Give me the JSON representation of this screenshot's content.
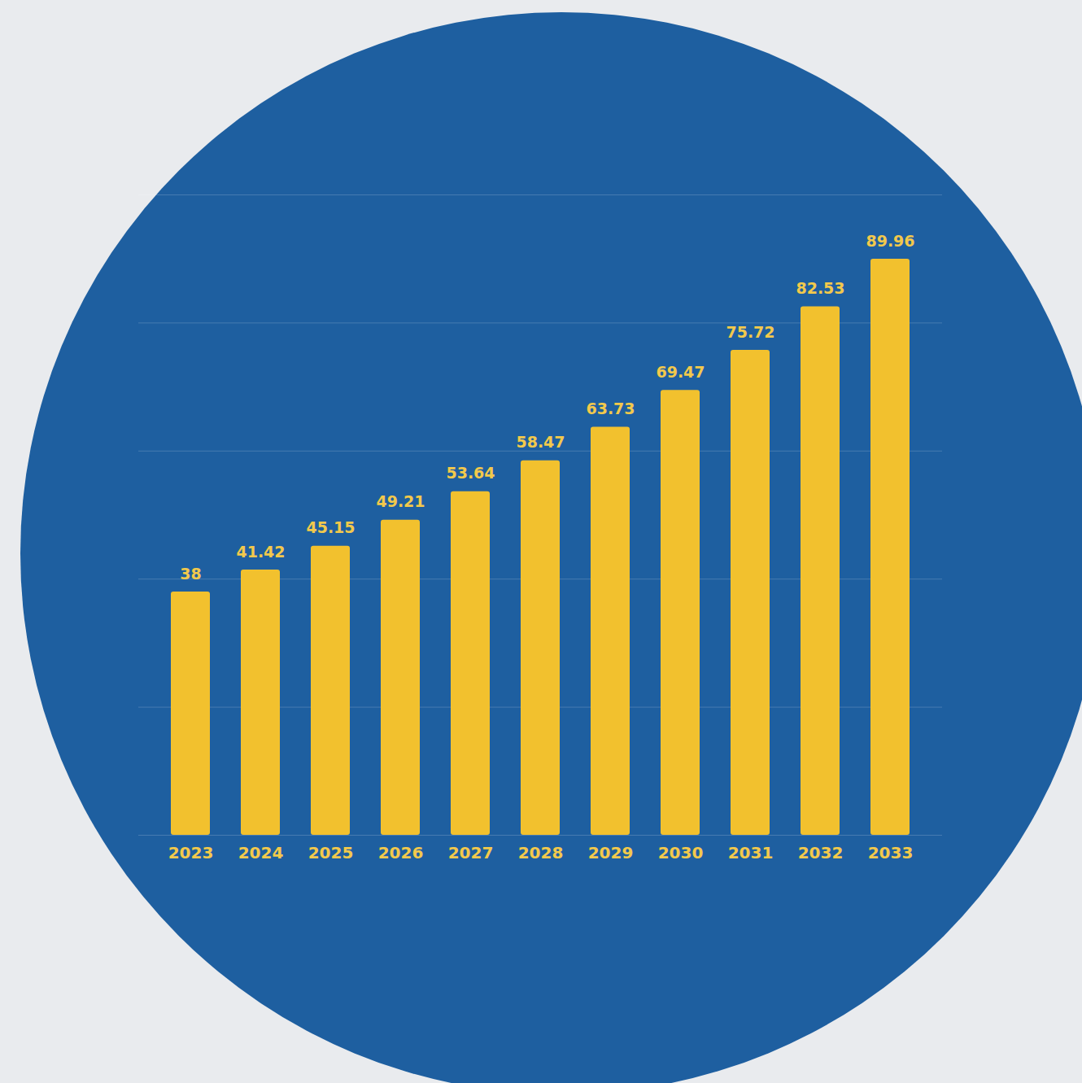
{
  "chart_data": {
    "type": "bar",
    "categories": [
      "2023",
      "2024",
      "2025",
      "2026",
      "2027",
      "2028",
      "2029",
      "2030",
      "2031",
      "2032",
      "2033"
    ],
    "values": [
      38,
      41.42,
      45.15,
      49.21,
      53.64,
      58.47,
      63.73,
      69.47,
      75.72,
      82.53,
      89.96
    ],
    "color": "#f2c12e",
    "ylim": [
      0,
      100
    ],
    "yticks": [
      0,
      20,
      40,
      60,
      80,
      100
    ],
    "grid": true,
    "data_labels": true,
    "tick_labels": "x"
  }
}
